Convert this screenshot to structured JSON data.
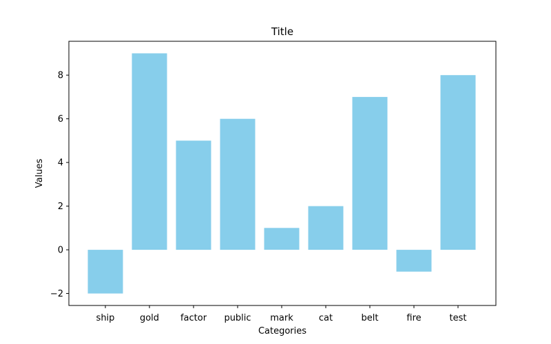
{
  "chart_data": {
    "type": "bar",
    "title": "Title",
    "xlabel": "Categories",
    "ylabel": "Values",
    "categories": [
      "ship",
      "gold",
      "factor",
      "public",
      "mark",
      "cat",
      "belt",
      "fire",
      "test"
    ],
    "values": [
      -2,
      9,
      5,
      6,
      1,
      2,
      7,
      -1,
      8
    ],
    "ylim": [
      -2.55,
      9.55
    ],
    "yticks": [
      -2,
      0,
      2,
      4,
      6,
      8
    ],
    "ytick_labels": [
      "−2",
      "0",
      "2",
      "4",
      "6",
      "8"
    ],
    "bar_color": "#87ceeb",
    "grid": false,
    "legend": "none"
  }
}
